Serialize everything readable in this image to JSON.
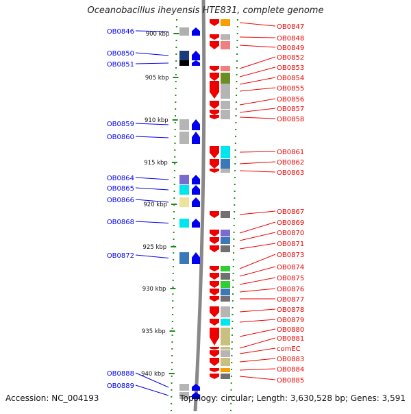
{
  "title": "Oceanobacillus iheyensis HTE831, complete genome",
  "accession": "Accession: NC_004193",
  "summary": "Topology: circular; Length: 3,630,528 bp; Genes: 3,591",
  "colors": {
    "forward": "#0000ee",
    "reverse": "#ee0000",
    "backbone": "#888888",
    "tick": "#1a8a1a"
  },
  "ruler": [
    {
      "label": "900 kbp"
    },
    {
      "label": "905 kbp"
    },
    {
      "label": "910 kbp"
    },
    {
      "label": "915 kbp"
    },
    {
      "label": "920 kbp"
    },
    {
      "label": "925 kbp"
    },
    {
      "label": "930 kbp"
    },
    {
      "label": "935 kbp"
    },
    {
      "label": "940 kbp"
    }
  ],
  "genes_forward": [
    {
      "name": "OB0846",
      "cog": "#b0b0b0"
    },
    {
      "name": "OB0850",
      "cog": "#1a3a7a"
    },
    {
      "name": "OB0851",
      "cog": "#000000"
    },
    {
      "name": "OB0859",
      "cog": "#b5b5b5"
    },
    {
      "name": "OB0860",
      "cog": "#b5b5b5"
    },
    {
      "name": "OB0864",
      "cog": "#7a6bd0"
    },
    {
      "name": "OB0865",
      "cog": "#00e5ee"
    },
    {
      "name": "OB0866",
      "cog": "#eee39a"
    },
    {
      "name": "OB0868",
      "cog": "#00e5ee"
    },
    {
      "name": "OB0872",
      "cog": "#3a78b8"
    },
    {
      "name": "OB0888",
      "cog": "#b5b5b5"
    },
    {
      "name": "OB0889",
      "cog": "#b5b5b5"
    }
  ],
  "genes_reverse": [
    {
      "name": "OB0847",
      "cog": "#f5a000"
    },
    {
      "name": "OB0848",
      "cog": "#b5b5b5"
    },
    {
      "name": "OB0849",
      "cog": "#f08080"
    },
    {
      "name": "OB0852",
      "cog": "#f08080"
    },
    {
      "name": "OB0853",
      "cog": "#6b8e23"
    },
    {
      "name": "OB0854",
      "cog": "#6b8e23"
    },
    {
      "name": "OB0855",
      "cog": "#b5b5b5"
    },
    {
      "name": "OB0856",
      "cog": "#b5b5b5"
    },
    {
      "name": "OB0857",
      "cog": "#b5b5b5"
    },
    {
      "name": "OB0858",
      "cog": "#b5b5b5"
    },
    {
      "name": "OB0861",
      "cog": "#00e5ee"
    },
    {
      "name": "OB0862",
      "cog": "#3a78b8"
    },
    {
      "name": "OB0863",
      "cog": "#b5b5b5"
    },
    {
      "name": "OB0867",
      "cog": "#707070"
    },
    {
      "name": "OB0869",
      "cog": "#7a6bd0"
    },
    {
      "name": "OB0870",
      "cog": "#3a78b8"
    },
    {
      "name": "OB0871",
      "cog": "#707070"
    },
    {
      "name": "OB0873",
      "cog": "#32cd32"
    },
    {
      "name": "OB0874",
      "cog": "#707070"
    },
    {
      "name": "OB0875",
      "cog": "#32cd32"
    },
    {
      "name": "OB0876",
      "cog": "#3a78b8"
    },
    {
      "name": "OB0877",
      "cog": "#707070"
    },
    {
      "name": "OB0878",
      "cog": "#b5b5b5"
    },
    {
      "name": "OB0879",
      "cog": "#00e5ee"
    },
    {
      "name": "OB0880",
      "cog": "#c8c080"
    },
    {
      "name": "OB0881",
      "cog": "#c8c080"
    },
    {
      "name": "comEC",
      "cog": "#b5b5b5"
    },
    {
      "name": "OB0883",
      "cog": "#c8c080"
    },
    {
      "name": "OB0884",
      "cog": "#f5a000"
    },
    {
      "name": "OB0885",
      "cog": "#707070"
    }
  ]
}
